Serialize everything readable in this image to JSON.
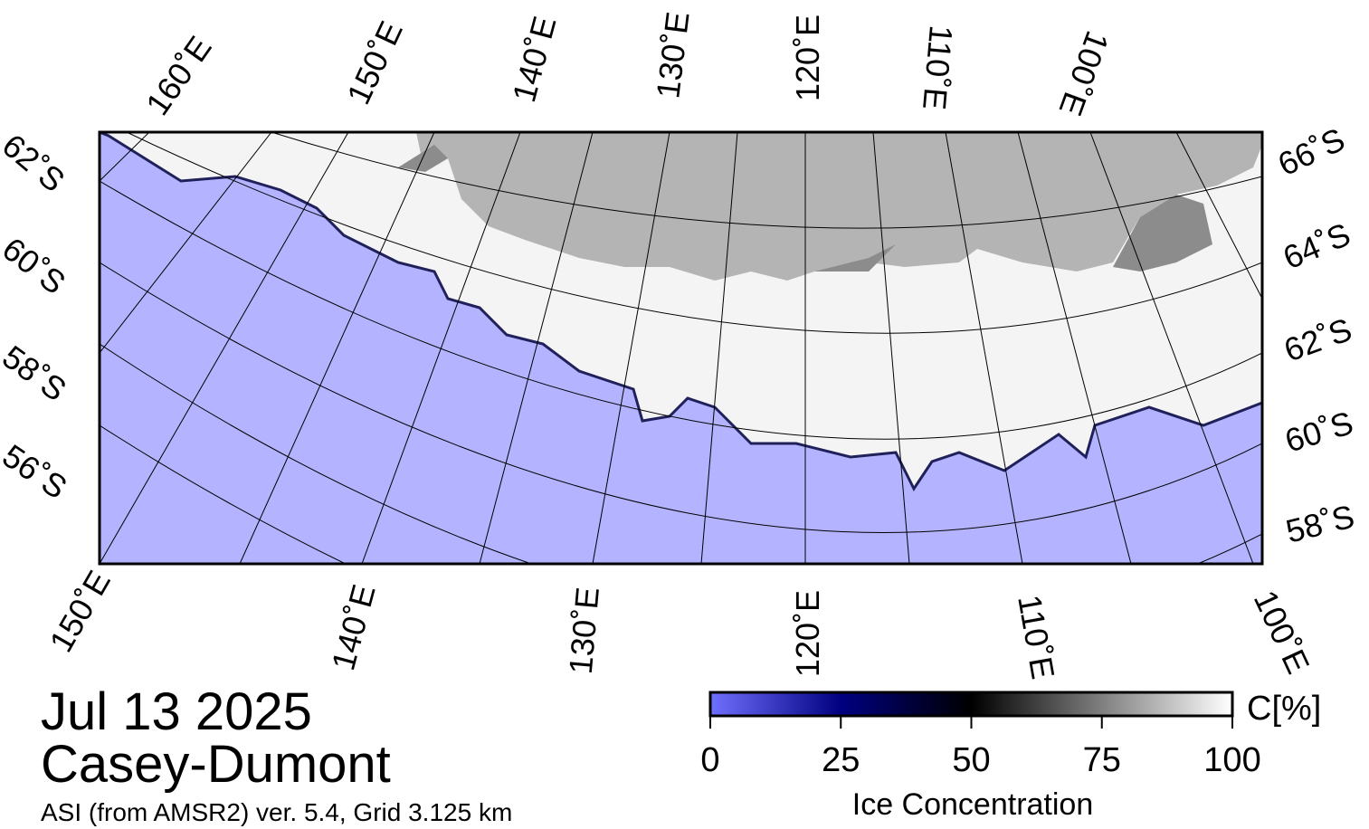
{
  "map": {
    "date": "Jul 13 2025",
    "region": "Casey-Dumont",
    "source": "ASI (from AMSR2) ver. 5.4,  Grid 3.125 km",
    "top_labels": [
      "160˚E",
      "150˚E",
      "140˚E",
      "130˚E",
      "120˚E",
      "110˚E",
      "100˚E"
    ],
    "left_labels": [
      "62˚S",
      "60˚S",
      "58˚S",
      "56˚S"
    ],
    "right_labels": [
      "66˚S",
      "64˚S",
      "62˚S",
      "60˚S",
      "58˚S"
    ],
    "bottom_labels": [
      "150˚E",
      "140˚E",
      "130˚E",
      "120˚E",
      "110˚E",
      "100˚E"
    ]
  },
  "colorbar": {
    "label": "Ice Concentration",
    "unit": "C[%]",
    "lim": [
      0,
      100
    ],
    "ticks": [
      0,
      25,
      50,
      75,
      100
    ]
  }
}
